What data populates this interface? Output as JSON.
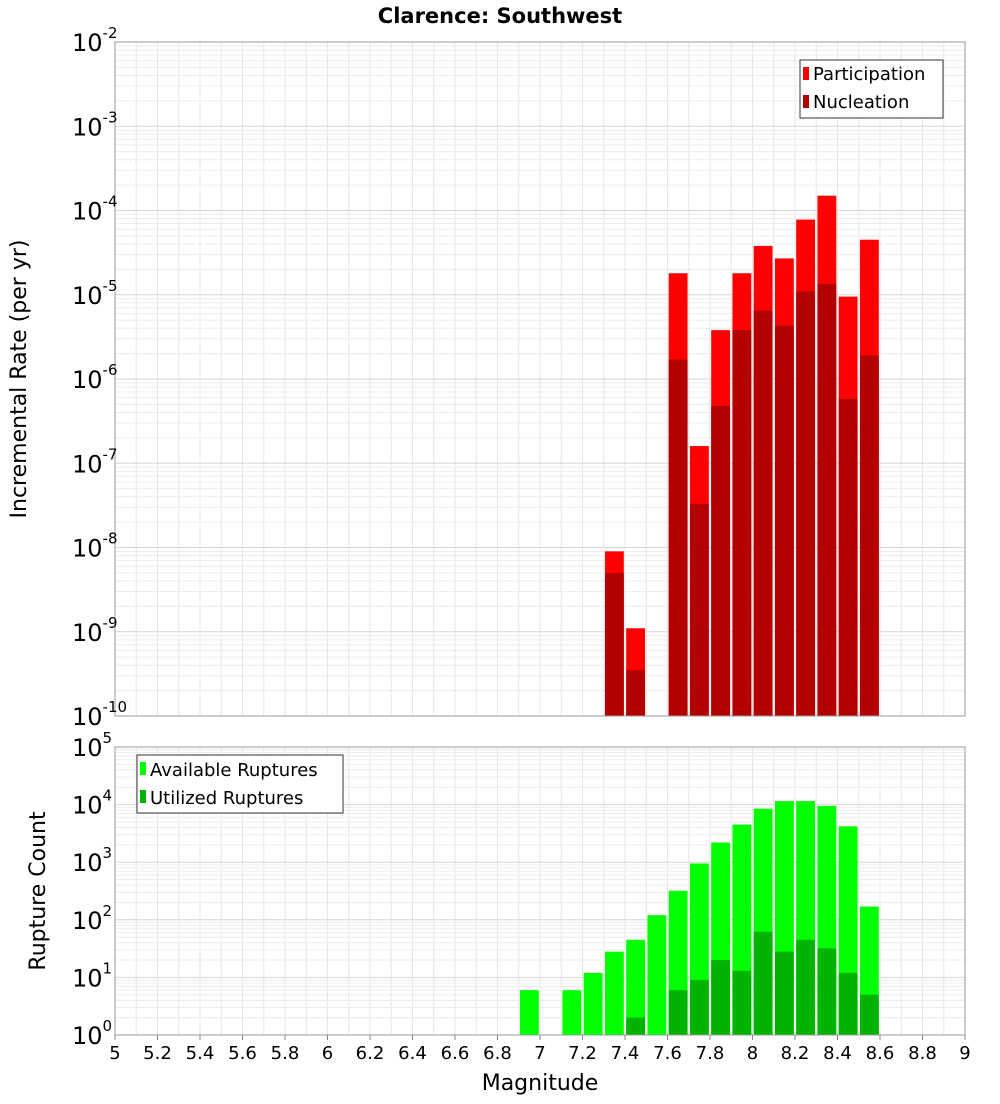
{
  "chart_data": [
    {
      "type": "bar",
      "title": "Clarence: Southwest",
      "xlabel": "Magnitude",
      "ylabel": "Incremental Rate (per yr)",
      "yscale": "log",
      "ylim": [
        1e-10,
        0.01
      ],
      "xlim": [
        5,
        9
      ],
      "bin_width": 0.1,
      "y_tick_exponents": [
        "-10",
        "-9",
        "-8",
        "-7",
        "-6",
        "-5",
        "-4",
        "-3",
        "-2"
      ],
      "legend_position": "top-right",
      "x": [
        7.35,
        7.45,
        7.65,
        7.75,
        7.85,
        7.95,
        8.05,
        8.15,
        8.25,
        8.35,
        8.45,
        8.55
      ],
      "series": [
        {
          "name": "Participation",
          "color": "#ff0000",
          "values": [
            9e-09,
            1.1e-09,
            1.8e-05,
            1.6e-07,
            3.8e-06,
            1.8e-05,
            3.8e-05,
            2.7e-05,
            7.8e-05,
            0.00015,
            9.5e-06,
            4.5e-05
          ]
        },
        {
          "name": "Nucleation",
          "color": "#b30000",
          "values": [
            5e-09,
            3.5e-10,
            1.7e-06,
            3.3e-08,
            4.8e-07,
            3.8e-06,
            6.5e-06,
            4.3e-06,
            1.1e-05,
            1.35e-05,
            5.8e-07,
            1.9e-06
          ]
        }
      ]
    },
    {
      "type": "bar",
      "xlabel": "Magnitude",
      "ylabel": "Rupture Count",
      "yscale": "log",
      "ylim": [
        1,
        100000
      ],
      "xlim": [
        5,
        9
      ],
      "bin_width": 0.1,
      "x_ticks": [
        "5",
        "5.2",
        "5.4",
        "5.6",
        "5.8",
        "6",
        "6.2",
        "6.4",
        "6.6",
        "6.8",
        "7",
        "7.2",
        "7.4",
        "7.6",
        "7.8",
        "8",
        "8.2",
        "8.4",
        "8.6",
        "8.8",
        "9"
      ],
      "y_tick_exponents": [
        "0",
        "1",
        "2",
        "3",
        "4",
        "5"
      ],
      "legend_position": "top-left",
      "x": [
        6.95,
        7.15,
        7.25,
        7.35,
        7.45,
        7.55,
        7.65,
        7.75,
        7.85,
        7.95,
        8.05,
        8.15,
        8.25,
        8.35,
        8.45,
        8.55
      ],
      "series": [
        {
          "name": "Available Ruptures",
          "color": "#00ff00",
          "values": [
            6,
            6,
            12,
            28,
            45,
            120,
            320,
            950,
            2200,
            4500,
            8500,
            11500,
            11500,
            9500,
            4200,
            170
          ]
        },
        {
          "name": "Utilized Ruptures",
          "color": "#00b300",
          "values": [
            0,
            0,
            0,
            1,
            2,
            0,
            6,
            9,
            20,
            13,
            62,
            28,
            45,
            32,
            12,
            5
          ]
        }
      ]
    }
  ]
}
